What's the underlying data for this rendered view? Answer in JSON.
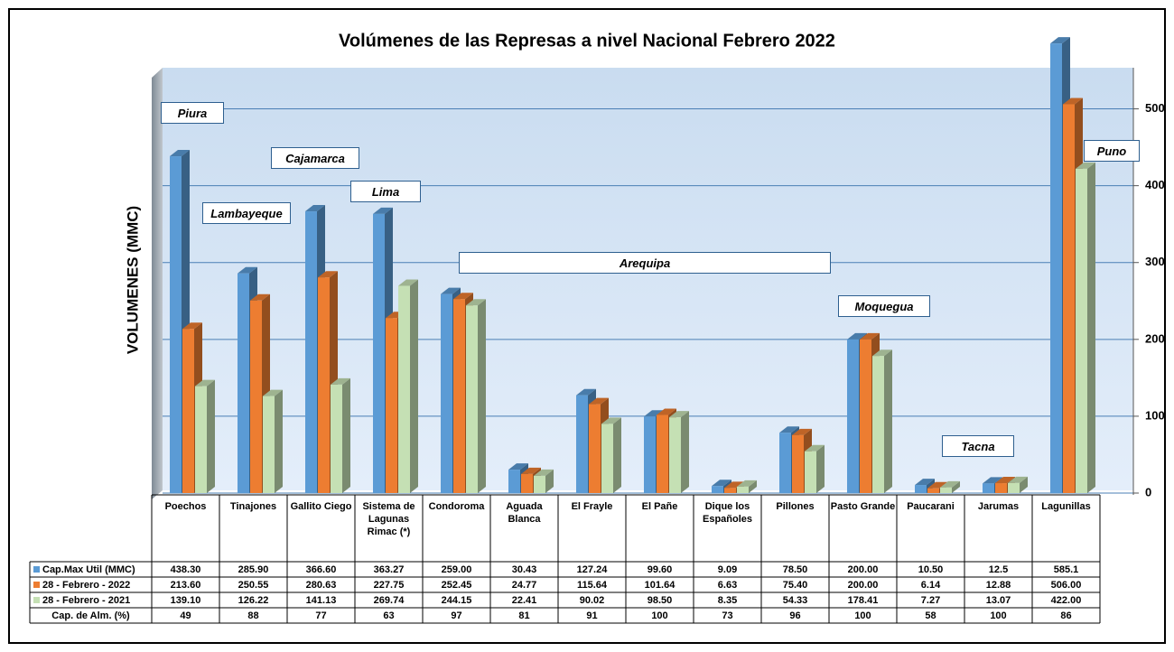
{
  "chart_data": {
    "type": "bar3d",
    "title": "Volúmenes de las Represas a nivel Nacional Febrero 2022",
    "y_axis_label": "VOLUMENES (MMC)",
    "categories": [
      "Poechos",
      "Tinajones",
      "Gallito Ciego",
      "Sistema de Lagunas Rimac (*)",
      "Condoroma",
      "Aguada Blanca",
      "El Frayle",
      "El Pañe",
      "Dique los Españoles",
      "Pillones",
      "Pasto Grande",
      "Paucarani",
      "Jarumas",
      "Lagunillas"
    ],
    "series": [
      {
        "name": "Cap.Max Util (MMC)",
        "color": "#5b9bd5",
        "values": [
          438.3,
          285.9,
          366.6,
          363.27,
          259,
          30.43,
          127.24,
          99.6,
          9.09,
          78.5,
          200,
          10.5,
          12.5,
          585.1
        ],
        "value_labels": [
          "438.30",
          "285.90",
          "366.60",
          "363.27",
          "259.00",
          "30.43",
          "127.24",
          "99.60",
          "9.09",
          "78.50",
          "200.00",
          "10.50",
          "12.5",
          "585.1"
        ]
      },
      {
        "name": "28 - Febrero - 2022",
        "color": "#ed7d31",
        "values": [
          213.6,
          250.55,
          280.63,
          227.75,
          252.45,
          24.77,
          115.64,
          101.64,
          6.63,
          75.4,
          200,
          6.14,
          12.88,
          506
        ],
        "value_labels": [
          "213.60",
          "250.55",
          "280.63",
          "227.75",
          "252.45",
          "24.77",
          "115.64",
          "101.64",
          "6.63",
          "75.40",
          "200.00",
          "6.14",
          "12.88",
          "506.00"
        ]
      },
      {
        "name": "28 - Febrero - 2021",
        "color": "#c5e0b4",
        "values": [
          139.1,
          126.22,
          141.13,
          269.74,
          244.15,
          22.41,
          90.02,
          98.5,
          8.35,
          54.33,
          178.41,
          7.27,
          13.07,
          422
        ],
        "value_labels": [
          "139.10",
          "126.22",
          "141.13",
          "269.74",
          "244.15",
          "22.41",
          "90.02",
          "98.50",
          "8.35",
          "54.33",
          "178.41",
          "7.27",
          "13.07",
          "422.00"
        ]
      }
    ],
    "extra_row": {
      "name": "Cap. de Alm.  (%)",
      "values": [
        49,
        88,
        77,
        63,
        97,
        81,
        91,
        100,
        73,
        96,
        100,
        58,
        100,
        86
      ]
    },
    "annotations": [
      "Piura",
      "Lambayeque",
      "Cajamarca",
      "Lima",
      "Arequipa",
      "Moquegua",
      "Tacna",
      "Puno"
    ],
    "ylim": [
      0,
      550
    ],
    "yticks": [
      0,
      100,
      200,
      300,
      400,
      500
    ],
    "grid": true
  }
}
